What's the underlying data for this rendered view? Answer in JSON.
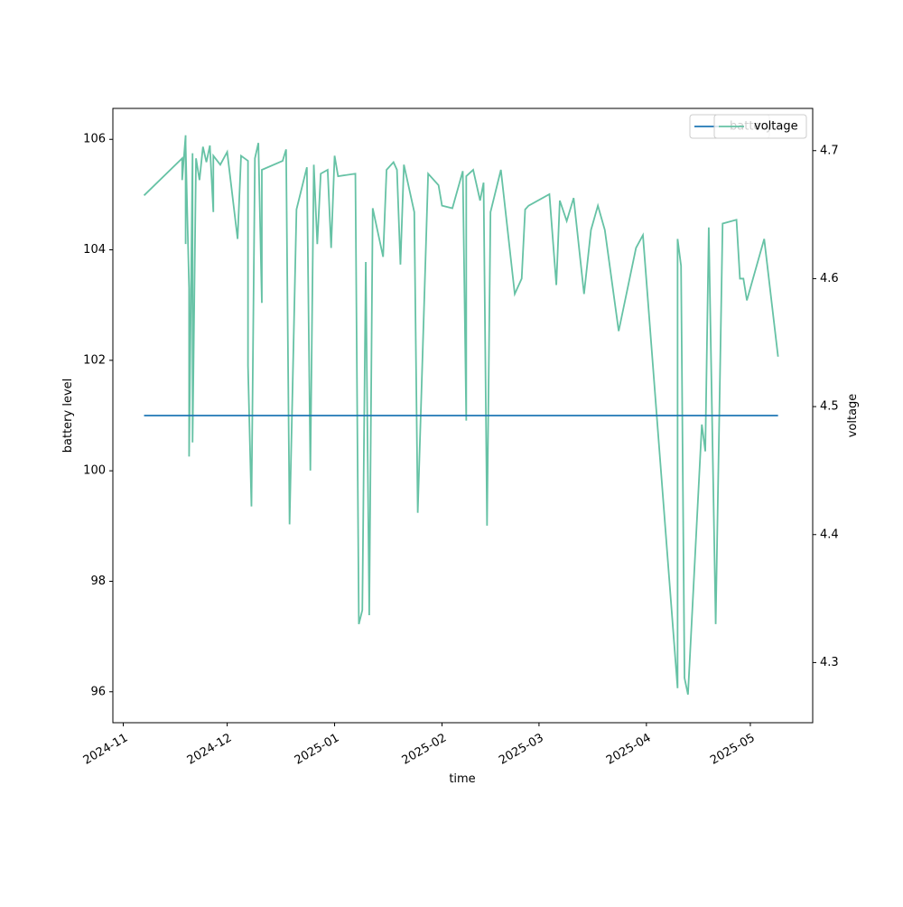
{
  "chart_data": {
    "type": "line",
    "x_label": "time",
    "y_label": "battery level",
    "y2_label": "voltage",
    "xlim": [
      "2024-10-29",
      "2025-05-19"
    ],
    "xticks": [
      {
        "value": "2024-11-01",
        "label": "2024-11"
      },
      {
        "value": "2024-12-01",
        "label": "2024-12"
      },
      {
        "value": "2025-01-01",
        "label": "2025-01"
      },
      {
        "value": "2025-02-01",
        "label": "2025-02"
      },
      {
        "value": "2025-03-01",
        "label": "2025-03"
      },
      {
        "value": "2025-04-01",
        "label": "2025-04"
      },
      {
        "value": "2025-05-01",
        "label": "2025-05"
      }
    ],
    "ylim": [
      95.44,
      106.56
    ],
    "yticks": [
      96,
      98,
      100,
      102,
      104,
      106
    ],
    "y2lim": [
      4.253,
      4.733
    ],
    "y2ticks": [
      4.3,
      4.4,
      4.5,
      4.6,
      4.7
    ],
    "legend_loc": "upper right",
    "series": [
      {
        "name": "battery",
        "color": "#1f77b4",
        "x": [
          "2024-11-07",
          "2025-05-09"
        ],
        "values": [
          101,
          101
        ]
      },
      {
        "name": "voltage",
        "color": "#66c2a5",
        "axis": "y2",
        "x": [
          "2024-11-07",
          "2024-11-18",
          "2024-11-18",
          "2024-11-19",
          "2024-11-19",
          "2024-11-19",
          "2024-11-20",
          "2024-11-20",
          "2024-11-21",
          "2024-11-21",
          "2024-11-22",
          "2024-11-23",
          "2024-11-24",
          "2024-11-25",
          "2024-11-26",
          "2024-11-27",
          "2024-11-27",
          "2024-11-29",
          "2024-12-01",
          "2024-12-04",
          "2024-12-05",
          "2024-12-07",
          "2024-12-07",
          "2024-12-08",
          "2024-12-09",
          "2024-12-10",
          "2024-12-11",
          "2024-12-11",
          "2024-12-17",
          "2024-12-18",
          "2024-12-19",
          "2024-12-21",
          "2024-12-24",
          "2024-12-25",
          "2024-12-26",
          "2024-12-27",
          "2024-12-28",
          "2024-12-30",
          "2024-12-31",
          "2025-01-01",
          "2025-01-02",
          "2025-01-07",
          "2025-01-08",
          "2025-01-09",
          "2025-01-10",
          "2025-01-11",
          "2025-01-12",
          "2025-01-15",
          "2025-01-16",
          "2025-01-18",
          "2025-01-19",
          "2025-01-20",
          "2025-01-21",
          "2025-01-24",
          "2025-01-25",
          "2025-01-28",
          "2025-01-31",
          "2025-02-01",
          "2025-02-04",
          "2025-02-07",
          "2025-02-08",
          "2025-02-08",
          "2025-02-10",
          "2025-02-12",
          "2025-02-13",
          "2025-02-14",
          "2025-02-15",
          "2025-02-18",
          "2025-02-22",
          "2025-02-24",
          "2025-02-25",
          "2025-02-26",
          "2025-03-04",
          "2025-03-06",
          "2025-03-07",
          "2025-03-09",
          "2025-03-11",
          "2025-03-14",
          "2025-03-16",
          "2025-03-18",
          "2025-03-20",
          "2025-03-24",
          "2025-03-29",
          "2025-03-31",
          "2025-04-10",
          "2025-04-10",
          "2025-04-11",
          "2025-04-12",
          "2025-04-13",
          "2025-04-17",
          "2025-04-18",
          "2025-04-19",
          "2025-04-21",
          "2025-04-23",
          "2025-04-27",
          "2025-04-28",
          "2025-04-29",
          "2025-04-30",
          "2025-05-05",
          "2025-05-09"
        ],
        "values": [
          4.665,
          4.694,
          4.677,
          4.712,
          4.627,
          4.705,
          4.592,
          4.461,
          4.698,
          4.472,
          4.694,
          4.677,
          4.703,
          4.691,
          4.704,
          4.652,
          4.696,
          4.689,
          4.699,
          4.631,
          4.696,
          4.692,
          4.532,
          4.422,
          4.694,
          4.706,
          4.581,
          4.685,
          4.692,
          4.701,
          4.408,
          4.654,
          4.687,
          4.45,
          4.689,
          4.627,
          4.682,
          4.685,
          4.624,
          4.696,
          4.68,
          4.682,
          4.33,
          4.341,
          4.613,
          4.337,
          4.655,
          4.617,
          4.685,
          4.691,
          4.685,
          4.611,
          4.689,
          4.652,
          4.417,
          4.682,
          4.673,
          4.657,
          4.655,
          4.684,
          4.489,
          4.68,
          4.685,
          4.661,
          4.675,
          4.407,
          4.652,
          4.685,
          4.588,
          4.6,
          4.654,
          4.657,
          4.666,
          4.595,
          4.661,
          4.645,
          4.663,
          4.588,
          4.638,
          4.657,
          4.638,
          4.559,
          4.624,
          4.634,
          4.28,
          4.631,
          4.61,
          4.288,
          4.275,
          4.486,
          4.465,
          4.64,
          4.33,
          4.643,
          4.646,
          4.6,
          4.6,
          4.583,
          4.631,
          4.539
        ]
      }
    ]
  }
}
